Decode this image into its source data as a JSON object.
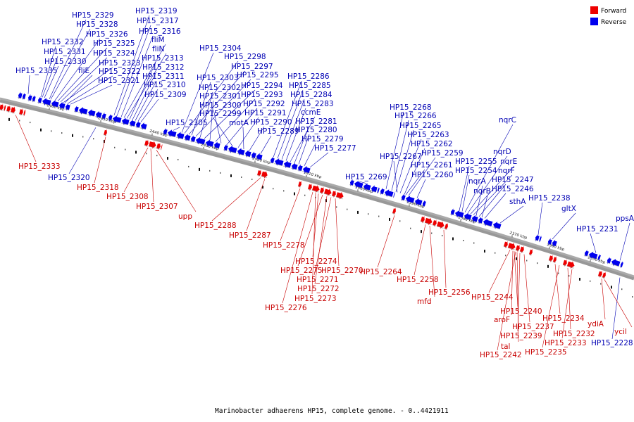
{
  "caption": "Marinobacter adhaerens HP15, complete genome. - 0..4421911",
  "legend": [
    {
      "label": "Forward",
      "color": "#ee0000"
    },
    {
      "label": "Reverse",
      "color": "#0000ee"
    }
  ],
  "colors": {
    "forward": "#ee0000",
    "reverse": "#0000ee",
    "backbone": "#999999"
  },
  "scale_ticks": [
    "2460 kbp",
    "2450 kbp",
    "2440 kbp",
    "2430 kbp",
    "2420 kbp",
    "2410 kbp",
    "2400 kbp",
    "2390 kbp",
    "2380 kbp",
    "2370 kbp",
    "2360 kbp",
    "2350 kbp"
  ],
  "reverse_labels": [
    "HP15_2329",
    "HP15_2328",
    "HP15_2326",
    "HP15_2325",
    "HP15_2332",
    "HP15_2331",
    "HP15_2330",
    "HP15_2324",
    "HP15_2323",
    "HP15_2322",
    "HP15_2321",
    "fliE",
    "HP15_2335",
    "HP15_2319",
    "HP15_2317",
    "HP15_2316",
    "fliM",
    "fliN",
    "HP15_2313",
    "HP15_2312",
    "HP15_2311",
    "HP15_2310",
    "HP15_2309",
    "HP15_2305",
    "HP15_2304",
    "HP15_2298",
    "HP15_2297",
    "HP15_2303",
    "HP15_2295",
    "HP15_2302",
    "HP15_2294",
    "HP15_2301",
    "HP15_2293",
    "HP15_2300",
    "HP15_2292",
    "HP15_2299",
    "HP15_2291",
    "motA",
    "HP15_2290",
    "HP15_2289",
    "HP15_2286",
    "HP15_2285",
    "HP15_2284",
    "HP15_2283",
    "ccmE",
    "HP15_2281",
    "HP15_2280",
    "HP15_2279",
    "HP15_2277",
    "HP15_2268",
    "HP15_2266",
    "HP15_2265",
    "HP15_2263",
    "HP15_2262",
    "HP15_2267",
    "HP15_2259",
    "HP15_2261",
    "HP15_2269",
    "HP15_2260",
    "nqrC",
    "nqrD",
    "HP15_2255",
    "nqrE",
    "HP15_2254",
    "nqrF",
    "nqrA",
    "HP15_2247",
    "nqrB",
    "HP15_2246",
    "sthA",
    "HP15_2238",
    "gltX",
    "HP15_2231",
    "ppsA",
    "HP15_2320",
    "HP15_2228"
  ],
  "forward_labels": [
    "HP15_2333",
    "HP15_2318",
    "HP15_2308",
    "HP15_2307",
    "upp",
    "HP15_2288",
    "HP15_2287",
    "HP15_2278",
    "HP15_2274",
    "HP15_2275",
    "HP15_2270",
    "HP15_2271",
    "HP15_2272",
    "HP15_2273",
    "HP15_2276",
    "HP15_2264",
    "HP15_2258",
    "mfd",
    "HP15_2256",
    "HP15_2244",
    "HP15_2240",
    "aroF",
    "HP15_2237",
    "HP15_2239",
    "tal",
    "HP15_2242",
    "HP15_2234",
    "HP15_2232",
    "HP15_2233",
    "HP15_2235",
    "ydiA",
    "ycil"
  ]
}
